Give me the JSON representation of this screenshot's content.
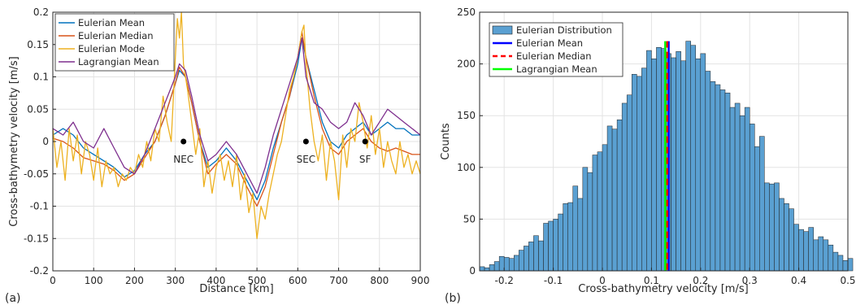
{
  "chart_data": [
    {
      "type": "line",
      "panel_label": "(a)",
      "xlabel": "Distance [km]",
      "ylabel": "Cross-bathymetry velocity [m/s]",
      "xlim": [
        0,
        900
      ],
      "ylim": [
        -0.2,
        0.2
      ],
      "xticks": [
        0,
        100,
        200,
        300,
        400,
        500,
        600,
        700,
        800,
        900
      ],
      "yticks": [
        -0.2,
        -0.15,
        -0.1,
        -0.05,
        0,
        0.05,
        0.1,
        0.15,
        0.2
      ],
      "xtick_labels": [
        "0",
        "100",
        "200",
        "300",
        "400",
        "500",
        "600",
        "700",
        "800",
        "900"
      ],
      "ytick_labels": [
        "-0.2",
        "-0.15",
        "-0.1",
        "-0.05",
        "0",
        "0.05",
        "0.1",
        "0.15",
        "0.2"
      ],
      "grid": true,
      "legend_position": "top-left",
      "series": [
        {
          "name": "Eulerian Mean",
          "color": "#0072bd",
          "x": [
            0,
            25,
            50,
            75,
            100,
            125,
            150,
            175,
            200,
            225,
            250,
            275,
            300,
            310,
            325,
            340,
            360,
            380,
            400,
            425,
            450,
            475,
            500,
            520,
            540,
            560,
            580,
            600,
            610,
            620,
            640,
            660,
            680,
            700,
            720,
            740,
            760,
            780,
            800,
            820,
            840,
            860,
            880,
            900
          ],
          "y": [
            0.01,
            0.02,
            0.01,
            -0.01,
            -0.02,
            -0.03,
            -0.04,
            -0.055,
            -0.045,
            -0.02,
            0.0,
            0.04,
            0.09,
            0.11,
            0.1,
            0.06,
            0.0,
            -0.04,
            -0.03,
            -0.01,
            -0.03,
            -0.06,
            -0.09,
            -0.06,
            -0.01,
            0.03,
            0.07,
            0.12,
            0.16,
            0.13,
            0.08,
            0.03,
            0.0,
            -0.01,
            0.01,
            0.02,
            0.03,
            0.01,
            0.02,
            0.03,
            0.02,
            0.02,
            0.01,
            0.01
          ]
        },
        {
          "name": "Eulerian Median",
          "color": "#d95319",
          "x": [
            0,
            25,
            50,
            75,
            100,
            125,
            150,
            175,
            200,
            225,
            250,
            275,
            300,
            310,
            325,
            340,
            360,
            380,
            400,
            425,
            450,
            475,
            500,
            520,
            540,
            560,
            580,
            600,
            610,
            620,
            640,
            660,
            680,
            700,
            720,
            740,
            760,
            780,
            800,
            820,
            840,
            860,
            880,
            900
          ],
          "y": [
            0.005,
            0.0,
            -0.01,
            -0.025,
            -0.03,
            -0.035,
            -0.045,
            -0.06,
            -0.05,
            -0.025,
            0.0,
            0.04,
            0.09,
            0.115,
            0.1,
            0.06,
            0.0,
            -0.05,
            -0.035,
            -0.02,
            -0.035,
            -0.07,
            -0.1,
            -0.07,
            -0.02,
            0.03,
            0.07,
            0.13,
            0.17,
            0.13,
            0.07,
            0.02,
            -0.01,
            -0.02,
            0.0,
            0.01,
            0.02,
            0.0,
            -0.01,
            -0.015,
            -0.01,
            -0.015,
            -0.02,
            -0.02
          ]
        },
        {
          "name": "Eulerian Mode",
          "color": "#edb120",
          "x": [
            0,
            10,
            20,
            30,
            40,
            50,
            60,
            70,
            80,
            90,
            100,
            110,
            120,
            130,
            140,
            150,
            160,
            170,
            180,
            190,
            200,
            210,
            220,
            230,
            240,
            250,
            260,
            270,
            280,
            290,
            300,
            305,
            310,
            315,
            320,
            330,
            340,
            350,
            360,
            370,
            380,
            390,
            400,
            410,
            420,
            430,
            440,
            450,
            460,
            470,
            480,
            490,
            500,
            510,
            520,
            530,
            540,
            550,
            560,
            570,
            580,
            590,
            600,
            610,
            615,
            620,
            630,
            640,
            650,
            660,
            670,
            680,
            690,
            700,
            710,
            720,
            730,
            740,
            750,
            760,
            770,
            780,
            790,
            800,
            810,
            820,
            830,
            840,
            850,
            860,
            870,
            880,
            890,
            900
          ],
          "y": [
            0.02,
            -0.04,
            0.0,
            -0.06,
            0.02,
            -0.03,
            0.01,
            -0.05,
            0.0,
            -0.02,
            -0.06,
            -0.01,
            -0.07,
            -0.03,
            -0.05,
            -0.04,
            -0.07,
            -0.05,
            -0.06,
            -0.04,
            -0.05,
            -0.02,
            -0.04,
            0.0,
            -0.03,
            0.02,
            0.0,
            0.07,
            0.03,
            0.0,
            0.13,
            0.19,
            0.16,
            0.2,
            0.12,
            0.08,
            0.03,
            -0.02,
            0.02,
            -0.07,
            -0.03,
            -0.08,
            -0.04,
            -0.02,
            -0.06,
            -0.03,
            -0.07,
            -0.02,
            -0.09,
            -0.05,
            -0.11,
            -0.08,
            -0.15,
            -0.1,
            -0.12,
            -0.08,
            -0.05,
            -0.02,
            0.0,
            0.04,
            0.08,
            0.1,
            0.13,
            0.17,
            0.18,
            0.12,
            0.05,
            0.0,
            -0.03,
            0.01,
            -0.06,
            0.0,
            -0.03,
            -0.09,
            0.01,
            -0.04,
            0.02,
            0.0,
            0.06,
            0.03,
            -0.01,
            0.04,
            -0.02,
            0.02,
            -0.04,
            0.0,
            -0.03,
            -0.05,
            0.0,
            -0.04,
            -0.02,
            -0.05,
            -0.03,
            -0.05
          ]
        },
        {
          "name": "Lagrangian Mean",
          "color": "#7e2f8e",
          "x": [
            0,
            25,
            50,
            75,
            100,
            125,
            150,
            175,
            200,
            225,
            250,
            275,
            300,
            310,
            325,
            340,
            360,
            380,
            400,
            425,
            450,
            475,
            500,
            520,
            540,
            560,
            580,
            600,
            610,
            620,
            640,
            660,
            680,
            700,
            720,
            740,
            760,
            780,
            800,
            820,
            840,
            860,
            880,
            900
          ],
          "y": [
            0.02,
            0.01,
            0.03,
            0.0,
            -0.01,
            0.02,
            -0.01,
            -0.04,
            -0.05,
            -0.02,
            0.02,
            0.06,
            0.1,
            0.12,
            0.11,
            0.07,
            0.01,
            -0.03,
            -0.02,
            0.0,
            -0.02,
            -0.05,
            -0.08,
            -0.04,
            0.01,
            0.05,
            0.09,
            0.13,
            0.16,
            0.1,
            0.06,
            0.05,
            0.03,
            0.02,
            0.03,
            0.06,
            0.04,
            0.01,
            0.03,
            0.05,
            0.04,
            0.03,
            0.02,
            0.01
          ]
        }
      ],
      "annotations": [
        {
          "label": "NEC",
          "x": 320,
          "y": 0
        },
        {
          "label": "SEC",
          "x": 620,
          "y": 0
        },
        {
          "label": "SF",
          "x": 765,
          "y": 0
        }
      ]
    },
    {
      "type": "bar",
      "panel_label": "(b)",
      "xlabel": "Cross-bathymetry velocity [m/s]",
      "ylabel": "Counts",
      "xlim": [
        -0.25,
        0.5
      ],
      "ylim": [
        0,
        250
      ],
      "xticks": [
        -0.2,
        -0.1,
        0,
        0.1,
        0.2,
        0.3,
        0.4,
        0.5
      ],
      "yticks": [
        0,
        50,
        100,
        150,
        200,
        250
      ],
      "xtick_labels": [
        "-0.2",
        "-0.1",
        "0",
        "0.1",
        "0.2",
        "0.3",
        "0.4",
        "0.5"
      ],
      "ytick_labels": [
        "0",
        "50",
        "100",
        "150",
        "200",
        "250"
      ],
      "grid": true,
      "legend_position": "top-left",
      "bar_color": "#5aa0d2",
      "bin_start": -0.25,
      "bin_width": 0.01,
      "series": [
        {
          "name": "Eulerian Distribution",
          "values": [
            4,
            3,
            6,
            9,
            14,
            13,
            12,
            15,
            20,
            24,
            28,
            34,
            29,
            46,
            48,
            50,
            55,
            65,
            66,
            82,
            70,
            100,
            95,
            112,
            115,
            122,
            140,
            137,
            146,
            162,
            170,
            190,
            188,
            196,
            213,
            205,
            216,
            215,
            210,
            206,
            212,
            203,
            222,
            218,
            205,
            210,
            193,
            183,
            180,
            175,
            172,
            158,
            162,
            150,
            158,
            142,
            120,
            130,
            85,
            84,
            85,
            70,
            65,
            60,
            45,
            40,
            38,
            42,
            30,
            33,
            30,
            25,
            18,
            15,
            10,
            12
          ]
        }
      ],
      "reference_lines": [
        {
          "name": "Eulerian Mean",
          "x": 0.135,
          "color": "#0000ff",
          "style": "solid"
        },
        {
          "name": "Eulerian Median",
          "x": 0.132,
          "color": "#ff0000",
          "style": "dashed"
        },
        {
          "name": "Lagrangian  Mean",
          "x": 0.128,
          "color": "#00ff00",
          "style": "solid"
        }
      ]
    }
  ]
}
